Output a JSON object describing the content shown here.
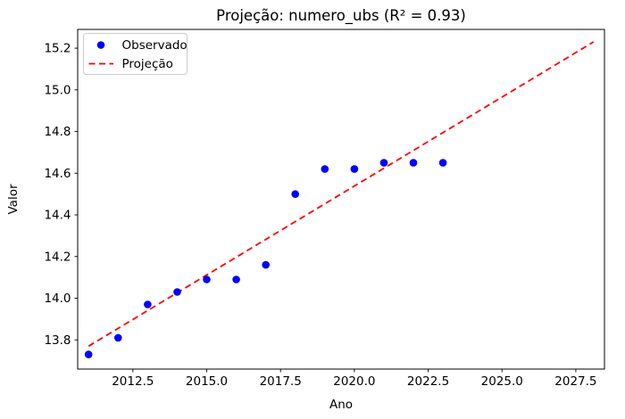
{
  "chart_data": {
    "type": "scatter",
    "title": "Projeção: numero_ubs (R² = 0.93)",
    "xlabel": "Ano",
    "ylabel": "Valor",
    "xlim": [
      2010.63,
      2028.47
    ],
    "ylim": [
      13.66,
      15.29
    ],
    "x_ticks": [
      2012.5,
      2015.0,
      2017.5,
      2020.0,
      2022.5,
      2025.0,
      2027.5
    ],
    "x_tick_labels": [
      "2012.5",
      "2015.0",
      "2017.5",
      "2020.0",
      "2022.5",
      "2025.0",
      "2027.5"
    ],
    "y_ticks": [
      13.8,
      14.0,
      14.2,
      14.4,
      14.6,
      14.8,
      15.0,
      15.2
    ],
    "y_tick_labels": [
      "13.8",
      "14.0",
      "14.2",
      "14.4",
      "14.6",
      "14.8",
      "15.0",
      "15.2"
    ],
    "grid": false,
    "legend_position": "upper-left",
    "background_color": "#ffffff",
    "series": [
      {
        "name": "Observado",
        "type": "scatter",
        "marker": "circle",
        "color": "#0000ff",
        "x": [
          2011,
          2012,
          2013,
          2014,
          2015,
          2016,
          2017,
          2018,
          2019,
          2020,
          2021,
          2022,
          2023
        ],
        "y": [
          13.73,
          13.81,
          13.97,
          14.03,
          14.09,
          14.09,
          14.16,
          14.5,
          14.62,
          14.62,
          14.65,
          14.65,
          14.65
        ]
      },
      {
        "name": "Projeção",
        "type": "line",
        "style": "dashed",
        "color": "#ff0000",
        "x": [
          2011,
          2028.1
        ],
        "y": [
          13.77,
          15.23
        ]
      }
    ]
  }
}
